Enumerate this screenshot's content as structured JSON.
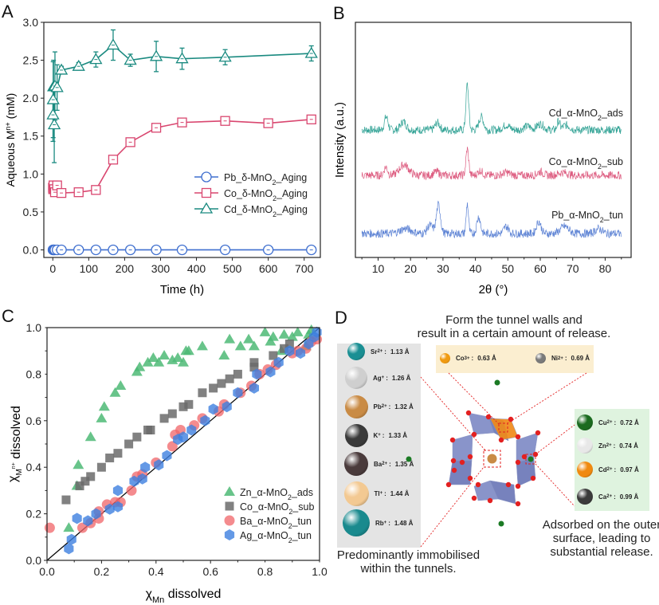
{
  "panels": {
    "A": "A",
    "B": "B",
    "C": "C",
    "D": "D"
  },
  "chart_data": [
    {
      "id": "A",
      "type": "line",
      "title": "",
      "xlabel": "Time (h)",
      "ylabel_main": "Aqueous M",
      "ylabel_sup": "n+",
      "ylabel_unit": " (mM)",
      "xlim": [
        -25,
        745
      ],
      "ylim": [
        -0.1,
        3.0
      ],
      "xticks": [
        0,
        100,
        200,
        300,
        400,
        500,
        600,
        700
      ],
      "xtick_labels": [
        "0",
        "100",
        "200",
        "300",
        "400",
        "500",
        "600",
        "700"
      ],
      "yticks": [
        0.0,
        0.5,
        1.0,
        1.5,
        2.0,
        2.5,
        3.0
      ],
      "ytick_labels": [
        "0.0",
        "0.5",
        "1.0",
        "1.5",
        "2.0",
        "2.5",
        "3.0"
      ],
      "legend_position": "center-right",
      "series": [
        {
          "name": "Pb_δ-MnO2_Aging",
          "label_parts": [
            "Pb_δ-MnO",
            "2",
            "_Aging"
          ],
          "color": "#3f6fcf",
          "marker": "circle",
          "x": [
            0.5,
            1,
            2,
            4,
            6,
            12,
            24,
            72,
            120,
            168,
            216,
            288,
            360,
            480,
            600,
            720
          ],
          "y": [
            0,
            0,
            0,
            0,
            0,
            0,
            0,
            0,
            0,
            0,
            0,
            0,
            0,
            0,
            0,
            0
          ],
          "err": []
        },
        {
          "name": "Co_δ-MnO2_Aging",
          "label_parts": [
            "Co_δ-MnO",
            "2",
            "_Aging"
          ],
          "color": "#d9466f",
          "marker": "square",
          "x": [
            0.5,
            1,
            2,
            4,
            6,
            12,
            24,
            72,
            120,
            168,
            216,
            288,
            360,
            480,
            600,
            720
          ],
          "y": [
            0.82,
            0.8,
            0.85,
            0.8,
            0.76,
            0.85,
            0.75,
            0.76,
            0.79,
            1.19,
            1.42,
            1.61,
            1.68,
            1.7,
            1.67,
            1.72
          ],
          "err": []
        },
        {
          "name": "Cd_δ-MnO2_Aging",
          "label_parts": [
            "Cd_δ-MnO",
            "2",
            "_Aging"
          ],
          "color": "#1a8a80",
          "marker": "triangle",
          "x": [
            0.5,
            1,
            2,
            4,
            6,
            12,
            24,
            72,
            120,
            168,
            216,
            288,
            360,
            480,
            720
          ],
          "y": [
            1.78,
            1.98,
            2.15,
            1.65,
            2.16,
            2.14,
            2.37,
            2.42,
            2.51,
            2.7,
            2.5,
            2.55,
            2.52,
            2.54,
            2.59
          ],
          "err": [
            0.35,
            0.5,
            0.35,
            0.5,
            0.45,
            0.3,
            0.05,
            0.05,
            0.1,
            0.2,
            0.08,
            0.2,
            0.14,
            0.1,
            0.1
          ]
        }
      ]
    },
    {
      "id": "B",
      "type": "line",
      "title": "",
      "xlabel": "2θ (°)",
      "ylabel": "Intensity (a.u.)",
      "xlim": [
        3,
        88
      ],
      "xticks": [
        10,
        20,
        30,
        40,
        50,
        60,
        70,
        80
      ],
      "xtick_labels": [
        "10",
        "20",
        "30",
        "40",
        "50",
        "60",
        "70",
        "80"
      ],
      "series": [
        {
          "name": "Cd_α-MnO2_ads",
          "label_parts": [
            "Cd_α-MnO",
            "2",
            "_ads"
          ],
          "color": "#1f9a8c",
          "offset": 2.0,
          "peaks": [
            [
              12.5,
              0.55,
              0.8
            ],
            [
              17.8,
              0.35,
              1.2
            ],
            [
              28.3,
              0.3,
              1.0
            ],
            [
              37.5,
              1.9,
              0.6
            ],
            [
              41.8,
              0.55,
              1.0
            ],
            [
              49.5,
              0.2,
              1.5
            ],
            [
              56,
              0.15,
              1.5
            ],
            [
              60,
              0.25,
              1.5
            ],
            [
              65.6,
              0.35,
              0.6
            ],
            [
              68,
              0.2,
              1.5
            ]
          ]
        },
        {
          "name": "Co_α-MnO2_sub",
          "label_parts": [
            "Co_α-MnO",
            "2",
            "_sub"
          ],
          "color": "#d94a72",
          "offset": 1.0,
          "peaks": [
            [
              12.4,
              0.35,
              0.8
            ],
            [
              18,
              0.45,
              2.0
            ],
            [
              28,
              0.15,
              1.2
            ],
            [
              37.5,
              1.1,
              0.6
            ],
            [
              41.5,
              0.2,
              1.0
            ],
            [
              49.5,
              0.12,
              1.5
            ],
            [
              60,
              0.15,
              1.2
            ],
            [
              67,
              0.12,
              2.0
            ]
          ]
        },
        {
          "name": "Pb_α-MnO2_tun",
          "label_parts": [
            "Pb_α-MnO",
            "2",
            "_tun"
          ],
          "color": "#4a74cf",
          "offset": 0.0,
          "peaks": [
            [
              18.5,
              0.2,
              2.5
            ],
            [
              26,
              0.35,
              1.2
            ],
            [
              28.6,
              1.2,
              0.9
            ],
            [
              37.5,
              1.25,
              0.5
            ],
            [
              41,
              0.7,
              0.8
            ],
            [
              49.5,
              0.3,
              1.0
            ],
            [
              59.5,
              0.5,
              1.0
            ],
            [
              67.5,
              0.3,
              1.8
            ],
            [
              78,
              0.2,
              1.5
            ]
          ]
        }
      ]
    },
    {
      "id": "C",
      "type": "scatter",
      "title": "",
      "xlabel_main": "χ",
      "xlabel_sub": "Mn",
      "xlabel_rest": " dissolved",
      "ylabel_main": "χ",
      "ylabel_sub": "M",
      "ylabel_subsup": "n+",
      "ylabel_rest": " dissolved",
      "xlim": [
        0,
        1.0
      ],
      "ylim": [
        0,
        1.0
      ],
      "xticks": [
        0,
        0.2,
        0.4,
        0.6,
        0.8,
        1.0
      ],
      "xtick_labels": [
        "0.0",
        "0.2",
        "0.4",
        "0.6",
        "0.8",
        "1.0"
      ],
      "yticks": [
        0,
        0.2,
        0.4,
        0.6,
        0.8,
        1.0
      ],
      "ytick_labels": [
        "0.0",
        "0.2",
        "0.4",
        "0.6",
        "0.8",
        "1.0"
      ],
      "reference_line": [
        [
          0,
          0
        ],
        [
          1,
          1
        ]
      ],
      "legend_position": "bottom-right",
      "series": [
        {
          "name": "Zn_α-MnO2_ads",
          "label_parts": [
            "Zn_α-MnO",
            "2",
            "_ads"
          ],
          "color": "#4dba76",
          "marker": "triangle",
          "points": [
            [
              0.08,
              0.14
            ],
            [
              0.11,
              0.32
            ],
            [
              0.115,
              0.41
            ],
            [
              0.16,
              0.53
            ],
            [
              0.2,
              0.61
            ],
            [
              0.21,
              0.66
            ],
            [
              0.25,
              0.72
            ],
            [
              0.27,
              0.75
            ],
            [
              0.33,
              0.81
            ],
            [
              0.34,
              0.83
            ],
            [
              0.37,
              0.85
            ],
            [
              0.39,
              0.87
            ],
            [
              0.41,
              0.85
            ],
            [
              0.43,
              0.88
            ],
            [
              0.46,
              0.86
            ],
            [
              0.48,
              0.87
            ],
            [
              0.5,
              0.85
            ],
            [
              0.51,
              0.9
            ],
            [
              0.52,
              0.9
            ],
            [
              0.57,
              0.92
            ],
            [
              0.65,
              0.88
            ],
            [
              0.67,
              0.95
            ],
            [
              0.71,
              0.92
            ],
            [
              0.74,
              0.95
            ],
            [
              0.76,
              0.92
            ],
            [
              0.8,
              0.98
            ],
            [
              0.82,
              0.94
            ],
            [
              0.83,
              0.96
            ],
            [
              0.86,
              0.9
            ],
            [
              0.87,
              0.97
            ],
            [
              0.9,
              0.96
            ],
            [
              0.92,
              0.98
            ],
            [
              0.95,
              0.92
            ],
            [
              0.96,
              0.97
            ],
            [
              0.97,
              0.99
            ]
          ]
        },
        {
          "name": "Co_α-MnO2_sub",
          "label_parts": [
            "Co_α-MnO",
            "2",
            "_sub"
          ],
          "color": "#6b6b6b",
          "marker": "square",
          "points": [
            [
              0.07,
              0.26
            ],
            [
              0.12,
              0.32
            ],
            [
              0.14,
              0.34
            ],
            [
              0.16,
              0.36
            ],
            [
              0.2,
              0.4
            ],
            [
              0.23,
              0.44
            ],
            [
              0.26,
              0.46
            ],
            [
              0.3,
              0.5
            ],
            [
              0.33,
              0.53
            ],
            [
              0.37,
              0.56
            ],
            [
              0.38,
              0.56
            ],
            [
              0.43,
              0.61
            ],
            [
              0.46,
              0.63
            ],
            [
              0.5,
              0.66
            ],
            [
              0.52,
              0.67
            ],
            [
              0.57,
              0.72
            ],
            [
              0.61,
              0.74
            ],
            [
              0.64,
              0.76
            ],
            [
              0.67,
              0.78
            ],
            [
              0.7,
              0.8
            ],
            [
              0.76,
              0.83
            ],
            [
              0.76,
              0.85
            ],
            [
              0.83,
              0.88
            ],
            [
              0.87,
              0.91
            ],
            [
              0.89,
              0.93
            ]
          ]
        },
        {
          "name": "Ba_α-MnO2_tun",
          "label_parts": [
            "Ba_α-MnO",
            "2",
            "_tun"
          ],
          "color": "#f06468",
          "marker": "circle",
          "points": [
            [
              0.01,
              0.14
            ],
            [
              0.13,
              0.14
            ],
            [
              0.16,
              0.16
            ],
            [
              0.19,
              0.18
            ],
            [
              0.19,
              0.21
            ],
            [
              0.22,
              0.24
            ],
            [
              0.25,
              0.25
            ],
            [
              0.27,
              0.25
            ],
            [
              0.31,
              0.3
            ],
            [
              0.33,
              0.36
            ],
            [
              0.35,
              0.37
            ],
            [
              0.4,
              0.42
            ],
            [
              0.46,
              0.49
            ],
            [
              0.47,
              0.54
            ],
            [
              0.49,
              0.56
            ],
            [
              0.54,
              0.58
            ],
            [
              0.57,
              0.61
            ],
            [
              0.63,
              0.64
            ],
            [
              0.65,
              0.67
            ],
            [
              0.71,
              0.72
            ],
            [
              0.75,
              0.75
            ],
            [
              0.78,
              0.8
            ],
            [
              0.81,
              0.82
            ],
            [
              0.84,
              0.84
            ],
            [
              0.9,
              0.89
            ],
            [
              0.92,
              0.9
            ],
            [
              0.95,
              0.91
            ],
            [
              0.97,
              0.94
            ],
            [
              0.99,
              0.95
            ]
          ]
        },
        {
          "name": "Ag_α-MnO2_tun",
          "label_parts": [
            "Ag_α-MnO",
            "2",
            "_tun"
          ],
          "color": "#3d7fe0",
          "marker": "hexagon",
          "points": [
            [
              0.08,
              0.05
            ],
            [
              0.09,
              0.09
            ],
            [
              0.11,
              0.18
            ],
            [
              0.15,
              0.17
            ],
            [
              0.18,
              0.2
            ],
            [
              0.23,
              0.22
            ],
            [
              0.26,
              0.23
            ],
            [
              0.26,
              0.3
            ],
            [
              0.32,
              0.34
            ],
            [
              0.35,
              0.35
            ],
            [
              0.36,
              0.4
            ],
            [
              0.41,
              0.41
            ],
            [
              0.44,
              0.45
            ],
            [
              0.48,
              0.52
            ],
            [
              0.5,
              0.53
            ],
            [
              0.53,
              0.56
            ],
            [
              0.58,
              0.6
            ],
            [
              0.61,
              0.65
            ],
            [
              0.66,
              0.66
            ],
            [
              0.7,
              0.72
            ],
            [
              0.76,
              0.74
            ],
            [
              0.77,
              0.8
            ],
            [
              0.82,
              0.81
            ],
            [
              0.85,
              0.85
            ],
            [
              0.89,
              0.9
            ],
            [
              0.93,
              0.89
            ],
            [
              0.96,
              0.93
            ],
            [
              0.98,
              0.96
            ],
            [
              0.99,
              0.98
            ]
          ]
        }
      ]
    }
  ],
  "diagram_D": {
    "top_caption_line1": "Form the tunnel walls and",
    "top_caption_line2": "result in a certain amount of release.",
    "left_caption_line1": "Predominantly immobilised",
    "left_caption_line2": "within the tunnels.",
    "right_caption_line1": "Adsorbed on the outer",
    "right_caption_line2": "surface, leading to",
    "right_caption_line3": "substantial release.",
    "tunnel_ions": [
      {
        "symbol": "Sr",
        "charge": "2+",
        "radius": "1.13 Å",
        "color": "#1a8f93"
      },
      {
        "symbol": "Ag",
        "charge": "+",
        "radius": "1.26 Å",
        "color": "#cfcfcf"
      },
      {
        "symbol": "Pb",
        "charge": "2+",
        "radius": "1.32 Å",
        "color": "#c98b45"
      },
      {
        "symbol": "K",
        "charge": "+",
        "radius": "1.33 Å",
        "color": "#3a3a3a"
      },
      {
        "symbol": "Ba",
        "charge": "2+",
        "radius": "1.35 Å",
        "color": "#4a3b3c"
      },
      {
        "symbol": "Tl",
        "charge": "+",
        "radius": "1.44 Å",
        "color": "#f3c992"
      },
      {
        "symbol": "Rb",
        "charge": "+",
        "radius": "1.48 Å",
        "color": "#1a8a8e"
      }
    ],
    "wall_ions": [
      {
        "symbol": "Co",
        "charge": "3+",
        "radius": "0.63 Å",
        "color": "#f09a10"
      },
      {
        "symbol": "Ni",
        "charge": "2+",
        "radius": "0.69 Å",
        "color": "#7a7a7a"
      }
    ],
    "surface_ions": [
      {
        "symbol": "Cu",
        "charge": "2+",
        "radius": "0.72 Å",
        "color": "#1b6b1f"
      },
      {
        "symbol": "Zn",
        "charge": "2+",
        "radius": "0.74 Å",
        "color": "#e8e8e8"
      },
      {
        "symbol": "Cd",
        "charge": "2+",
        "radius": "0.97 Å",
        "color": "#f08a10"
      },
      {
        "symbol": "Ca",
        "charge": "2+",
        "radius": "0.99 Å",
        "color": "#3b3b3b"
      }
    ]
  }
}
